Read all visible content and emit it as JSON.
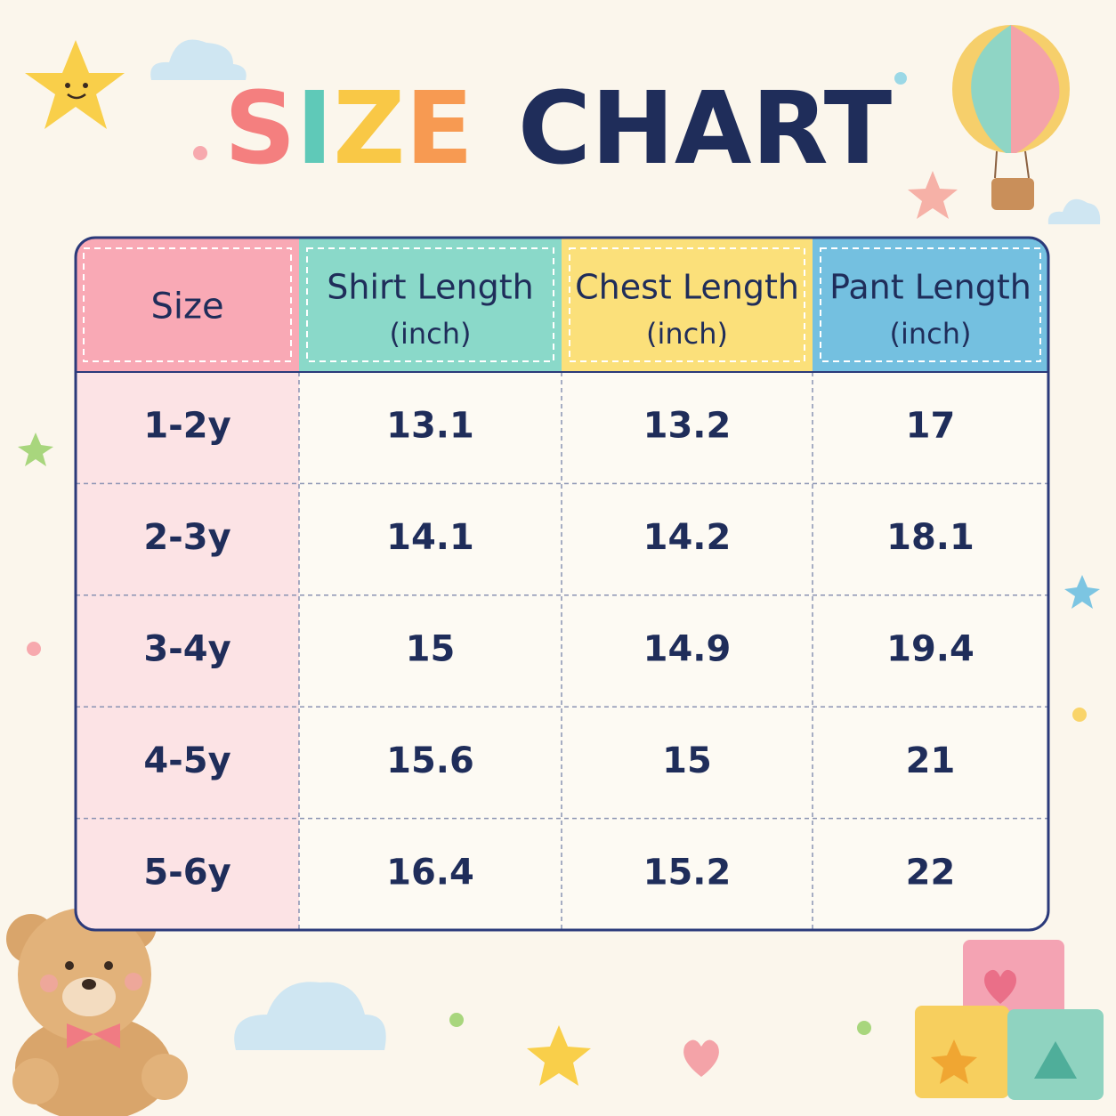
{
  "header": {
    "title_part1": "SIZE",
    "title_part2": "CHART"
  },
  "table": {
    "columns": [
      {
        "label": "Size"
      },
      {
        "label": "Shirt Length",
        "unit": "(inch)"
      },
      {
        "label": "Chest Length",
        "unit": "(inch)"
      },
      {
        "label": "Pant Length",
        "unit": "(inch)"
      }
    ],
    "rows": [
      [
        "1-2y",
        "13.1",
        "13.2",
        "17"
      ],
      [
        "2-3y",
        "14.1",
        "14.2",
        "18.1"
      ],
      [
        "3-4y",
        "15",
        "14.9",
        "19.4"
      ],
      [
        "4-5y",
        "15.6",
        "15",
        "21"
      ],
      [
        "5-6y",
        "16.4",
        "15.2",
        "22"
      ]
    ]
  }
}
